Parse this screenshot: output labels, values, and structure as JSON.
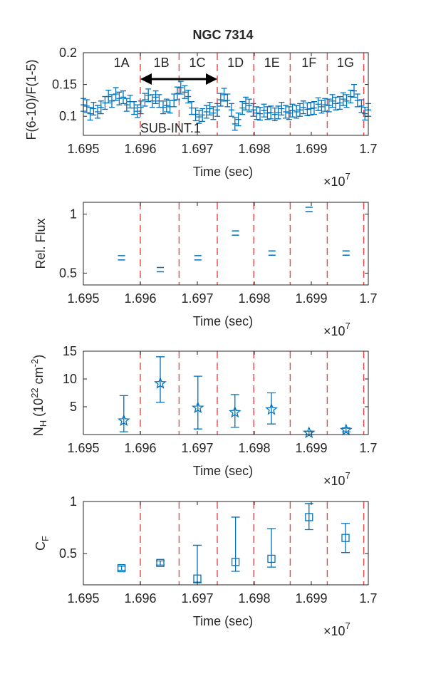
{
  "figure_title": "NGC 7314",
  "x_multiplier": {
    "base": "×10",
    "exp": "7"
  },
  "colors": {
    "series": "#0072BD",
    "boundary": "#E8474C",
    "axis": "#262626",
    "arrow": "#000000"
  },
  "segment_boundaries": [
    1.696,
    1.69668,
    1.69735,
    1.69799,
    1.69863,
    1.69928,
    1.69992
  ],
  "segment_labels": [
    {
      "text": "1A",
      "x": 1.69567
    },
    {
      "text": "1B",
      "x": 1.69637
    },
    {
      "text": "1C",
      "x": 1.697
    },
    {
      "text": "1D",
      "x": 1.69767
    },
    {
      "text": "1E",
      "x": 1.69831
    },
    {
      "text": "1F",
      "x": 1.69896
    },
    {
      "text": "1G",
      "x": 1.6996
    }
  ],
  "sub_interval": {
    "label": "SUB-INT.1",
    "from": 1.696,
    "to": 1.69735
  },
  "chart_data": [
    {
      "type": "scatter",
      "name": "hardness_ratio",
      "title": "NGC 7314",
      "xlabel": "Time (sec)",
      "ylabel": "F(6-10)/F(1-5)",
      "xlim": [
        1.695,
        1.7
      ],
      "ylim": [
        0.07,
        0.2
      ],
      "xticks": [
        "1.695",
        "1.696",
        "1.697",
        "1.698",
        "1.699",
        "1.7"
      ],
      "yticks": [
        "0.1",
        "0.15",
        "0.2"
      ],
      "marker": "errorbar",
      "x": [
        1.695,
        1.69506,
        1.69512,
        1.69518,
        1.69525,
        1.69531,
        1.69538,
        1.69544,
        1.6955,
        1.69557,
        1.69563,
        1.6957,
        1.69576,
        1.69582,
        1.69589,
        1.69595,
        1.69601,
        1.69608,
        1.69614,
        1.69621,
        1.69627,
        1.69633,
        1.6964,
        1.69646,
        1.69652,
        1.69659,
        1.69665,
        1.69671,
        1.69678,
        1.69684,
        1.6969,
        1.69697,
        1.69703,
        1.69709,
        1.69716,
        1.69722,
        1.69728,
        1.69735,
        1.69741,
        1.69747,
        1.69753,
        1.6976,
        1.69766,
        1.69772,
        1.69779,
        1.69785,
        1.69791,
        1.69798,
        1.69804,
        1.6981,
        1.69817,
        1.69823,
        1.69829,
        1.69836,
        1.69842,
        1.69848,
        1.69855,
        1.69861,
        1.69867,
        1.69874,
        1.6988,
        1.69886,
        1.69893,
        1.69899,
        1.69905,
        1.69912,
        1.69918,
        1.69924,
        1.69931,
        1.69937,
        1.69943,
        1.6995,
        1.69956,
        1.69962,
        1.69969,
        1.69975,
        1.69981,
        1.69988,
        1.69994,
        1.7
      ],
      "y": [
        0.118,
        0.116,
        0.104,
        0.112,
        0.107,
        0.114,
        0.121,
        0.131,
        0.124,
        0.135,
        0.128,
        0.13,
        0.118,
        0.123,
        0.113,
        0.108,
        0.114,
        0.126,
        0.133,
        0.124,
        0.13,
        0.124,
        0.114,
        0.117,
        0.115,
        0.125,
        0.136,
        0.145,
        0.138,
        0.131,
        0.113,
        0.103,
        0.099,
        0.102,
        0.107,
        0.112,
        0.105,
        0.11,
        0.126,
        0.134,
        0.125,
        0.11,
        0.088,
        0.095,
        0.113,
        0.12,
        0.117,
        0.11,
        0.105,
        0.104,
        0.109,
        0.105,
        0.106,
        0.103,
        0.106,
        0.112,
        0.107,
        0.105,
        0.109,
        0.107,
        0.11,
        0.114,
        0.111,
        0.112,
        0.113,
        0.119,
        0.115,
        0.118,
        0.117,
        0.124,
        0.12,
        0.121,
        0.127,
        0.124,
        0.131,
        0.14,
        0.125,
        0.116,
        0.104,
        0.11
      ],
      "yerr": [
        0.01,
        0.01,
        0.01,
        0.01,
        0.01,
        0.01,
        0.01,
        0.01,
        0.01,
        0.01,
        0.01,
        0.01,
        0.01,
        0.01,
        0.01,
        0.01,
        0.01,
        0.01,
        0.01,
        0.01,
        0.01,
        0.01,
        0.01,
        0.01,
        0.01,
        0.01,
        0.01,
        0.01,
        0.01,
        0.01,
        0.01,
        0.01,
        0.01,
        0.01,
        0.01,
        0.01,
        0.01,
        0.01,
        0.01,
        0.01,
        0.01,
        0.01,
        0.01,
        0.01,
        0.01,
        0.01,
        0.01,
        0.01,
        0.01,
        0.01,
        0.01,
        0.01,
        0.01,
        0.01,
        0.01,
        0.01,
        0.01,
        0.01,
        0.01,
        0.01,
        0.01,
        0.01,
        0.01,
        0.01,
        0.01,
        0.01,
        0.01,
        0.01,
        0.01,
        0.01,
        0.01,
        0.01,
        0.01,
        0.01,
        0.01,
        0.01,
        0.01,
        0.01,
        0.01,
        0.01
      ]
    },
    {
      "type": "scatter",
      "name": "relative_flux",
      "xlabel": "Time (sec)",
      "ylabel": "Rel. Flux",
      "xlim": [
        1.695,
        1.7
      ],
      "ylim": [
        0.4,
        1.1
      ],
      "xticks": [
        "1.695",
        "1.696",
        "1.697",
        "1.698",
        "1.699",
        "1.7"
      ],
      "yticks": [
        "0.5",
        "1"
      ],
      "marker": "plus",
      "x": [
        1.69567,
        1.69635,
        1.69701,
        1.69767,
        1.69831,
        1.69896,
        1.69961
      ],
      "y": [
        0.63,
        0.53,
        0.63,
        0.84,
        0.67,
        1.04,
        0.67
      ],
      "yerr": [
        0.01,
        0.01,
        0.01,
        0.01,
        0.01,
        0.01,
        0.01
      ]
    },
    {
      "type": "scatter",
      "name": "column_density",
      "xlabel": "Time (sec)",
      "ylabel": {
        "main": "N",
        "sub": "H",
        "rest": " (10",
        "sup1": "22",
        "mid": " cm",
        "sup2": "-2",
        "end": ")"
      },
      "xlim": [
        1.695,
        1.7
      ],
      "ylim": [
        0,
        15
      ],
      "xticks": [
        "1.695",
        "1.696",
        "1.697",
        "1.698",
        "1.699",
        "1.7"
      ],
      "yticks": [
        "5",
        "10",
        "15"
      ],
      "marker": "star",
      "x": [
        1.69571,
        1.69635,
        1.69701,
        1.69766,
        1.6983,
        1.69896,
        1.69961
      ],
      "y": [
        2.5,
        9.2,
        4.8,
        4.0,
        4.5,
        0.3,
        0.8
      ],
      "ylow": [
        0.5,
        5.8,
        1.0,
        1.3,
        1.9,
        0.0,
        0.5
      ],
      "yhigh": [
        7.0,
        14.0,
        10.5,
        7.2,
        7.5,
        0.6,
        1.2
      ]
    },
    {
      "type": "scatter",
      "name": "covering_fraction",
      "xlabel": "Time (sec)",
      "ylabel": {
        "main": "C",
        "sub": "F"
      },
      "xlim": [
        1.695,
        1.7
      ],
      "ylim": [
        0.2,
        1.0
      ],
      "xticks": [
        "1.695",
        "1.696",
        "1.697",
        "1.698",
        "1.699",
        "1.7"
      ],
      "yticks": [
        "0.5",
        "1"
      ],
      "marker": "square",
      "x": [
        1.69567,
        1.69635,
        1.697,
        1.69767,
        1.6983,
        1.69896,
        1.6996
      ],
      "y": [
        0.36,
        0.41,
        0.26,
        0.42,
        0.45,
        0.85,
        0.65
      ],
      "ylow": [
        0.34,
        0.39,
        0.22,
        0.33,
        0.37,
        0.73,
        0.51
      ],
      "yhigh": [
        0.38,
        0.43,
        0.58,
        0.85,
        0.74,
        0.98,
        0.79
      ]
    }
  ]
}
